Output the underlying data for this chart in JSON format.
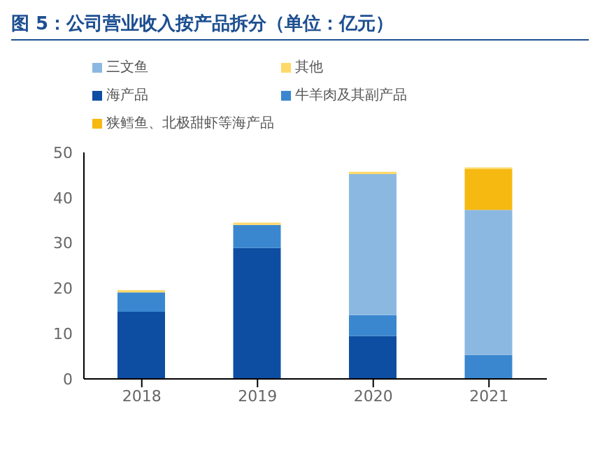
{
  "chart_data": {
    "type": "bar",
    "title": "图 5：公司营业收入按产品拆分（单位：亿元）",
    "categories": [
      "2018",
      "2019",
      "2020",
      "2021"
    ],
    "stacked": true,
    "ylim": [
      0,
      50
    ],
    "yticks": [
      0,
      10,
      20,
      30,
      40,
      50
    ],
    "grid": false,
    "legend": "top",
    "series": [
      {
        "name": "海产品",
        "color": "#0d4ea2",
        "values": [
          14.8,
          28.9,
          9.5,
          0
        ]
      },
      {
        "name": "牛羊肉及其副产品",
        "color": "#3a87cf",
        "values": [
          4.3,
          5.1,
          4.6,
          5.3
        ]
      },
      {
        "name": "三文鱼",
        "color": "#8bb8e0",
        "values": [
          0,
          0,
          31.1,
          32.0
        ]
      },
      {
        "name": "狭鳕鱼、北极甜虾等海产品",
        "color": "#f6b912",
        "values": [
          0,
          0,
          0,
          9.0
        ]
      },
      {
        "name": "其他",
        "color": "#fdd96a",
        "values": [
          0.5,
          0.5,
          0.5,
          0.4
        ]
      }
    ]
  }
}
